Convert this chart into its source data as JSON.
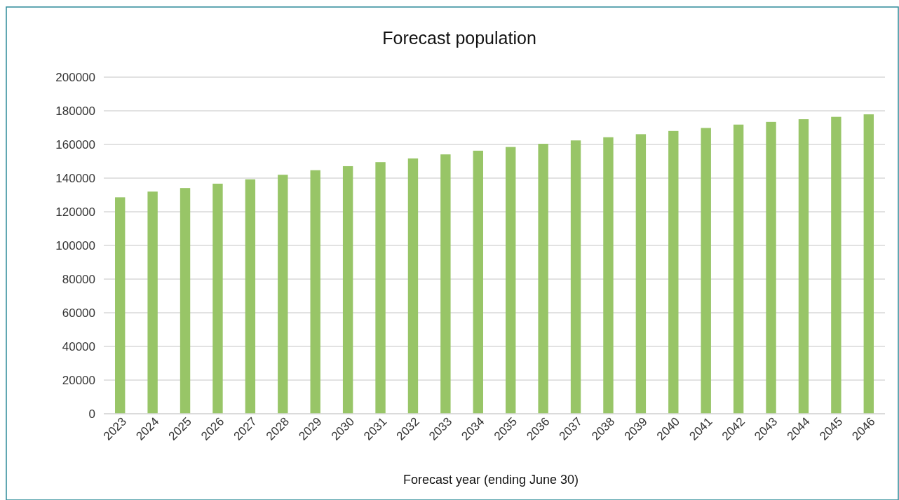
{
  "chart_data": {
    "type": "bar",
    "title": "Forecast population",
    "xlabel": "Forecast year (ending June 30)",
    "categories": [
      "2023",
      "2024",
      "2025",
      "2026",
      "2027",
      "2028",
      "2029",
      "2030",
      "2031",
      "2032",
      "2033",
      "2034",
      "2035",
      "2036",
      "2037",
      "2038",
      "2039",
      "2040",
      "2041",
      "2042",
      "2043",
      "2044",
      "2045",
      "2046"
    ],
    "values": [
      128600,
      132000,
      134100,
      136700,
      139300,
      142000,
      144700,
      147100,
      149500,
      151700,
      154100,
      156300,
      158500,
      160400,
      162400,
      164300,
      166100,
      168000,
      169800,
      171800,
      173400,
      175000,
      176400,
      177900
    ],
    "color": "#98c567",
    "ylim": [
      0,
      200000
    ],
    "yticks": [
      0,
      20000,
      40000,
      60000,
      80000,
      100000,
      120000,
      140000,
      160000,
      180000,
      200000
    ],
    "grid": "y"
  }
}
